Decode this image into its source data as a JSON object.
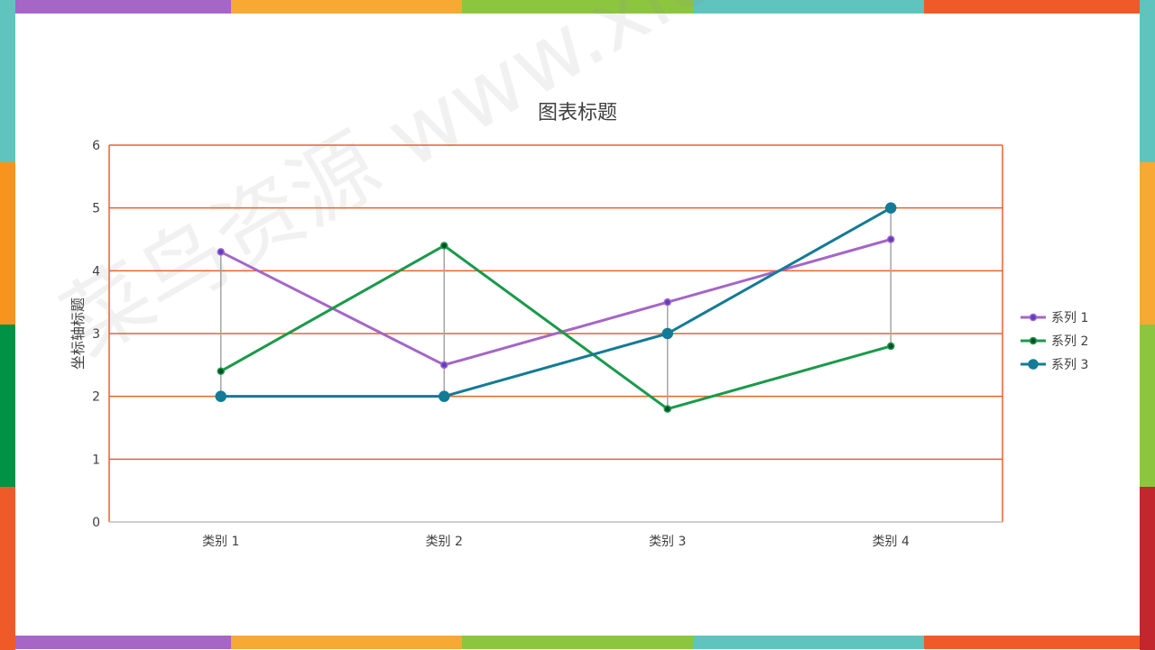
{
  "frame": {
    "colors": [
      "#a566c6",
      "#f7a934",
      "#8cc63f",
      "#5fc4be",
      "#f05a28"
    ],
    "left_colors": [
      "#5fc4be",
      "#f7941d",
      "#009245",
      "#f05a28"
    ],
    "right_colors": [
      "#5fc4be",
      "#f7a934",
      "#8cc63f",
      "#c1272d"
    ]
  },
  "watermark": "菜鸟资源 www.xiciw.com",
  "chart_data": {
    "type": "line",
    "title": "图表标题",
    "xlabel": "",
    "ylabel": "坐标轴标题",
    "categories": [
      "类别 1",
      "类别 2",
      "类别 3",
      "类别 4"
    ],
    "ylim": [
      0,
      6
    ],
    "yticks": [
      0,
      1,
      2,
      3,
      4,
      5,
      6
    ],
    "grid": true,
    "legend": "right",
    "drop_lines": true,
    "series": [
      {
        "name": "系列 1",
        "values": [
          4.3,
          2.5,
          3.5,
          4.5
        ],
        "color": "#a566c6",
        "marker_fill": "#5b3fc4"
      },
      {
        "name": "系列 2",
        "values": [
          2.4,
          4.4,
          1.8,
          2.8
        ],
        "color": "#1a9a4a",
        "marker_fill": "#0e4d2a"
      },
      {
        "name": "系列 3",
        "values": [
          2,
          2,
          3,
          5
        ],
        "color": "#137b96",
        "marker_fill": "#137b96"
      }
    ],
    "gridline_color": "#e8632b"
  }
}
